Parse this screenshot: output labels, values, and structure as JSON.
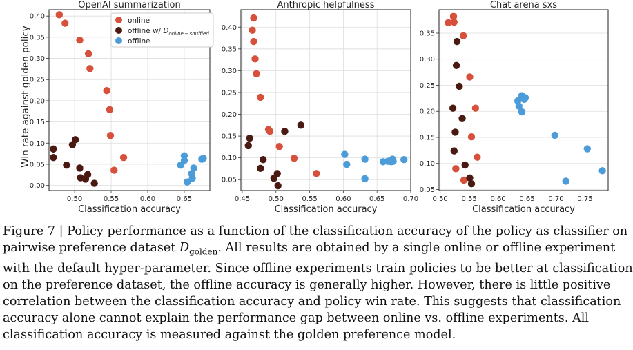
{
  "ylabel": "Win rate against golden policy",
  "legend": {
    "online": "online",
    "shuffled_prefix": "offline w/ ",
    "shuffled_sym": "D",
    "shuffled_sub": "online − shuffled",
    "offline": "offline"
  },
  "colors": {
    "online": "#d6503c",
    "shuffled": "#4a1a12",
    "offline": "#4b9cd8",
    "grid": "#dddddd"
  },
  "chart_data": [
    {
      "type": "scatter",
      "title": "OpenAI summarization",
      "xlabel": "Classification accuracy",
      "ylabel": "Win rate against golden policy",
      "xlim": [
        0.465,
        0.685
      ],
      "ylim": [
        -0.012,
        0.415
      ],
      "xticks": [
        0.5,
        0.55,
        0.6,
        0.65
      ],
      "xtick_labels": [
        "0.50",
        "0.55",
        "0.60",
        "0.65"
      ],
      "yticks": [
        0.0,
        0.05,
        0.1,
        0.15,
        0.2,
        0.25,
        0.3,
        0.35,
        0.4
      ],
      "ytick_labels": [
        "0.00",
        "0.05",
        "0.10",
        "0.15",
        "0.20",
        "0.25",
        "0.30",
        "0.35",
        "0.40"
      ],
      "grid": true,
      "legend_position": "top-right",
      "series": [
        {
          "name": "online",
          "key": "online",
          "points": [
            [
              0.479,
              0.403
            ],
            [
              0.487,
              0.383
            ],
            [
              0.507,
              0.343
            ],
            [
              0.519,
              0.311
            ],
            [
              0.521,
              0.276
            ],
            [
              0.544,
              0.224
            ],
            [
              0.548,
              0.179
            ],
            [
              0.549,
              0.118
            ],
            [
              0.567,
              0.066
            ],
            [
              0.554,
              0.036
            ]
          ]
        },
        {
          "name": "offline w/ D online-shuffled",
          "key": "shuffled",
          "points": [
            [
              0.471,
              0.086
            ],
            [
              0.471,
              0.066
            ],
            [
              0.489,
              0.048
            ],
            [
              0.497,
              0.096
            ],
            [
              0.501,
              0.108
            ],
            [
              0.507,
              0.041
            ],
            [
              0.508,
              0.018
            ],
            [
              0.515,
              0.015
            ],
            [
              0.518,
              0.026
            ],
            [
              0.527,
              0.005
            ]
          ]
        },
        {
          "name": "offline",
          "key": "offline",
          "points": [
            [
              0.645,
              0.048
            ],
            [
              0.65,
              0.07
            ],
            [
              0.65,
              0.059
            ],
            [
              0.654,
              0.008
            ],
            [
              0.66,
              0.028
            ],
            [
              0.661,
              0.017
            ],
            [
              0.663,
              0.041
            ],
            [
              0.674,
              0.062
            ],
            [
              0.676,
              0.064
            ]
          ]
        }
      ]
    },
    {
      "type": "scatter",
      "title": "Anthropic helpfulness",
      "xlabel": "Classification accuracy",
      "ylabel": "",
      "xlim": [
        0.448,
        0.7
      ],
      "ylim": [
        0.025,
        0.44
      ],
      "xticks": [
        0.45,
        0.5,
        0.55,
        0.6,
        0.65,
        0.7
      ],
      "xtick_labels": [
        "0.45",
        "0.50",
        "0.55",
        "0.60",
        "0.65",
        "0.70"
      ],
      "yticks": [
        0.05,
        0.1,
        0.15,
        0.2,
        0.25,
        0.3,
        0.35,
        0.4
      ],
      "ytick_labels": [
        "0.05",
        "0.10",
        "0.15",
        "0.20",
        "0.25",
        "0.30",
        "0.35",
        "0.40"
      ],
      "grid": true,
      "series": [
        {
          "name": "online",
          "key": "online",
          "points": [
            [
              0.467,
              0.421
            ],
            [
              0.465,
              0.393
            ],
            [
              0.467,
              0.367
            ],
            [
              0.469,
              0.327
            ],
            [
              0.471,
              0.293
            ],
            [
              0.477,
              0.239
            ],
            [
              0.489,
              0.165
            ],
            [
              0.491,
              0.161
            ],
            [
              0.505,
              0.126
            ],
            [
              0.527,
              0.099
            ],
            [
              0.56,
              0.064
            ]
          ]
        },
        {
          "name": "offline w/ D online-shuffled",
          "key": "shuffled",
          "points": [
            [
              0.461,
              0.145
            ],
            [
              0.459,
              0.128
            ],
            [
              0.477,
              0.076
            ],
            [
              0.481,
              0.096
            ],
            [
              0.497,
              0.053
            ],
            [
              0.502,
              0.064
            ],
            [
              0.503,
              0.036
            ],
            [
              0.513,
              0.161
            ],
            [
              0.537,
              0.175
            ]
          ]
        },
        {
          "name": "offline",
          "key": "offline",
          "points": [
            [
              0.602,
              0.108
            ],
            [
              0.605,
              0.085
            ],
            [
              0.632,
              0.097
            ],
            [
              0.632,
              0.052
            ],
            [
              0.659,
              0.091
            ],
            [
              0.666,
              0.092
            ],
            [
              0.671,
              0.091
            ],
            [
              0.673,
              0.097
            ],
            [
              0.674,
              0.092
            ],
            [
              0.69,
              0.096
            ]
          ]
        }
      ]
    },
    {
      "type": "scatter",
      "title": "Chat arena sxs",
      "xlabel": "Classification accuracy",
      "ylabel": "",
      "xlim": [
        0.498,
        0.79
      ],
      "ylim": [
        0.048,
        0.395
      ],
      "xticks": [
        0.5,
        0.55,
        0.6,
        0.65,
        0.7,
        0.75
      ],
      "xtick_labels": [
        "0.50",
        "0.55",
        "0.60",
        "0.65",
        "0.70",
        "0.75"
      ],
      "yticks": [
        0.05,
        0.1,
        0.15,
        0.2,
        0.25,
        0.3,
        0.35
      ],
      "ytick_labels": [
        "0.05",
        "0.10",
        "0.15",
        "0.20",
        "0.25",
        "0.30",
        "0.35"
      ],
      "grid": true,
      "series": [
        {
          "name": "online",
          "key": "online",
          "points": [
            [
              0.514,
              0.37
            ],
            [
              0.523,
              0.382
            ],
            [
              0.524,
              0.371
            ],
            [
              0.54,
              0.345
            ],
            [
              0.551,
              0.266
            ],
            [
              0.561,
              0.206
            ],
            [
              0.554,
              0.151
            ],
            [
              0.564,
              0.112
            ],
            [
              0.527,
              0.09
            ],
            [
              0.541,
              0.068
            ]
          ]
        },
        {
          "name": "offline w/ D online-shuffled",
          "key": "shuffled",
          "points": [
            [
              0.529,
              0.334
            ],
            [
              0.528,
              0.288
            ],
            [
              0.533,
              0.248
            ],
            [
              0.522,
              0.206
            ],
            [
              0.538,
              0.186
            ],
            [
              0.526,
              0.16
            ],
            [
              0.524,
              0.124
            ],
            [
              0.543,
              0.097
            ],
            [
              0.551,
              0.072
            ],
            [
              0.554,
              0.061
            ]
          ]
        },
        {
          "name": "offline",
          "key": "offline",
          "points": [
            [
              0.634,
              0.22
            ],
            [
              0.641,
              0.23
            ],
            [
              0.647,
              0.226
            ],
            [
              0.645,
              0.223
            ],
            [
              0.636,
              0.21
            ],
            [
              0.641,
              0.199
            ],
            [
              0.698,
              0.154
            ],
            [
              0.754,
              0.128
            ],
            [
              0.78,
              0.086
            ],
            [
              0.717,
              0.066
            ]
          ]
        }
      ]
    }
  ],
  "caption": {
    "line1": "Figure 7 | Policy performance as a function of the classification accuracy of the policy as classifier on",
    "line2a": "pairwise preference dataset ",
    "line2_sym": "D",
    "line2_sub": "golden",
    "line2b": ". All results are obtained by a single online or offline experiment",
    "line3": "with the default hyper-parameter. Since offline experiments train policies to be better at classification",
    "line4": "on the preference dataset, the offline accuracy is generally higher. However, there is little positive",
    "line5": "correlation between the classification accuracy and policy win rate. This suggests that classification",
    "line6": "accuracy alone cannot explain the performance gap between online vs.  offline experiments.  All",
    "line7": "classification accuracy is measured against the golden preference model."
  }
}
